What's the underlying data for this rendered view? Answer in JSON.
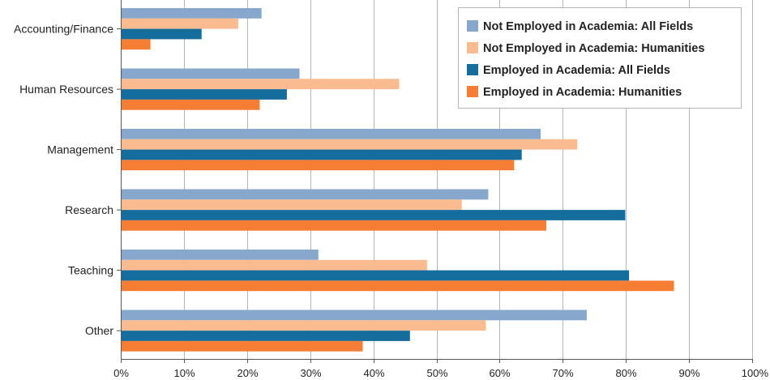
{
  "chart_data": {
    "type": "bar",
    "orientation": "horizontal",
    "categories": [
      "Accounting/Finance",
      "Human Resources",
      "Management",
      "Research",
      "Teaching",
      "Other"
    ],
    "series": [
      {
        "name": "Not Employed in Academia: All Fields",
        "color": "#87a8cc",
        "values": [
          22.3,
          28.3,
          66.5,
          58.2,
          31.3,
          73.8
        ]
      },
      {
        "name": "Not Employed in Academia: Humanities",
        "color": "#f9bb8f",
        "values": [
          18.6,
          44.1,
          72.3,
          54.0,
          48.5,
          57.8
        ]
      },
      {
        "name": "Employed in Academia: All Fields",
        "color": "#156d9e",
        "values": [
          12.8,
          26.3,
          63.5,
          79.9,
          80.5,
          45.8
        ]
      },
      {
        "name": "Employed in Academia: Humanities",
        "color": "#f57e34",
        "values": [
          4.7,
          22.0,
          62.3,
          67.4,
          87.6,
          38.3
        ]
      }
    ],
    "xlim": [
      0,
      100
    ],
    "xticks": [
      0,
      10,
      20,
      30,
      40,
      50,
      60,
      70,
      80,
      90,
      100
    ],
    "xtick_labels": [
      "0%",
      "10%",
      "20%",
      "30%",
      "40%",
      "50%",
      "60%",
      "70%",
      "80%",
      "90%",
      "100%"
    ],
    "grid": "vertical",
    "legend_position": "top-right",
    "title": "",
    "xlabel": "",
    "ylabel": ""
  }
}
